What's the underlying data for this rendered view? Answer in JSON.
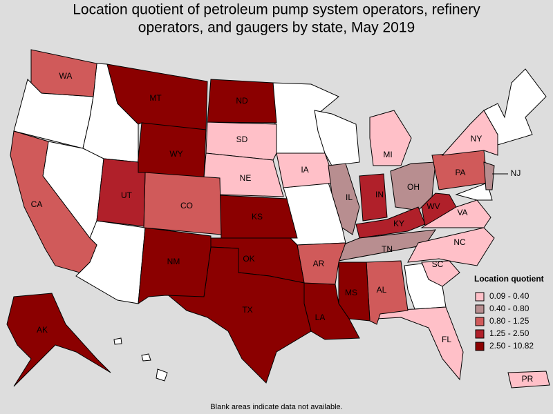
{
  "header": {
    "title": [
      "Location quotient of petroleum pump system operators, refinery",
      "operators, and gaugers by state, May 2019"
    ]
  },
  "legend": {
    "title": "Location quotient",
    "items": [
      {
        "label": "0.09 - 0.40",
        "color": "#ffc0c8"
      },
      {
        "label": "0.40 - 0.80",
        "color": "#b88e90"
      },
      {
        "label": "0.80 - 1.25",
        "color": "#d05a5a"
      },
      {
        "label": "1.25 - 2.50",
        "color": "#b0202a"
      },
      {
        "label": "2.50 - 10.82",
        "color": "#8b0000"
      }
    ]
  },
  "states": [
    {
      "label": "WA",
      "color": "#d05a5a"
    },
    {
      "label": "MT",
      "color": "#8b0000"
    },
    {
      "label": "ND",
      "color": "#8b0000"
    },
    {
      "label": "SD",
      "color": "#ffc0c8"
    },
    {
      "label": "WY",
      "color": "#8b0000"
    },
    {
      "label": "NE",
      "color": "#ffc0c8"
    },
    {
      "label": "IA",
      "color": "#ffc0c8"
    },
    {
      "label": "IL",
      "color": "#b88e90"
    },
    {
      "label": "IN",
      "color": "#b0202a"
    },
    {
      "label": "OH",
      "color": "#b88e90"
    },
    {
      "label": "PA",
      "color": "#d05a5a"
    },
    {
      "label": "NJ",
      "color": "#b88e90"
    },
    {
      "label": "NY",
      "color": "#ffc0c8"
    },
    {
      "label": "MI",
      "color": "#ffc0c8"
    },
    {
      "label": "WV",
      "color": "#b0202a"
    },
    {
      "label": "VA",
      "color": "#ffc0c8"
    },
    {
      "label": "KY",
      "color": "#b0202a"
    },
    {
      "label": "TN",
      "color": "#b88e90"
    },
    {
      "label": "NC",
      "color": "#ffc0c8"
    },
    {
      "label": "SC",
      "color": "#ffc0c8"
    },
    {
      "label": "FL",
      "color": "#ffc0c8"
    },
    {
      "label": "AL",
      "color": "#d05a5a"
    },
    {
      "label": "MS",
      "color": "#8b0000"
    },
    {
      "label": "LA",
      "color": "#8b0000"
    },
    {
      "label": "AR",
      "color": "#d05a5a"
    },
    {
      "label": "OK",
      "color": "#8b0000"
    },
    {
      "label": "TX",
      "color": "#8b0000"
    },
    {
      "label": "NM",
      "color": "#8b0000"
    },
    {
      "label": "KS",
      "color": "#8b0000"
    },
    {
      "label": "CO",
      "color": "#d05a5a"
    },
    {
      "label": "UT",
      "color": "#b0202a"
    },
    {
      "label": "CA",
      "color": "#d05a5a"
    },
    {
      "label": "AK",
      "color": "#8b0000"
    },
    {
      "label": "PR",
      "color": "#ffc0c8"
    }
  ],
  "note": "Blank areas indicate data not available."
}
